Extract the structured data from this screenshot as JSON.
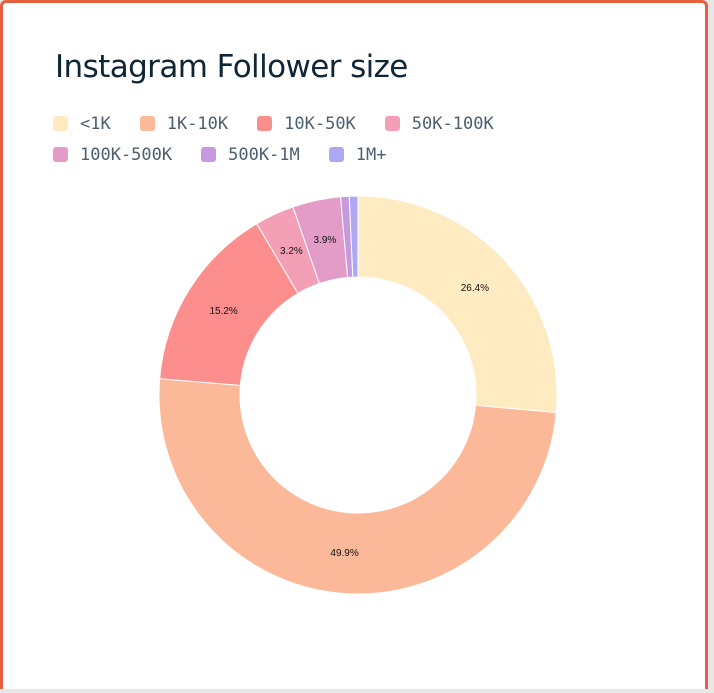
{
  "card": {
    "border_color": "#e4603f"
  },
  "chart_data": {
    "type": "pie",
    "style": "donut",
    "title": "Instagram Follower size",
    "legend_position": "top-left",
    "slices": [
      {
        "label": "<1K",
        "value": 26.4,
        "display": "26.4%",
        "color": "#ffebc2"
      },
      {
        "label": "1K-10K",
        "value": 49.9,
        "display": "49.9%",
        "color": "#fbb999"
      },
      {
        "label": "10K-50K",
        "value": 15.2,
        "display": "15.2%",
        "color": "#fc8e8e"
      },
      {
        "label": "50K-100K",
        "value": 3.2,
        "display": "3.2%",
        "color": "#f3a0b7"
      },
      {
        "label": "100K-500K",
        "value": 3.9,
        "display": "3.9%",
        "color": "#e39bc7"
      },
      {
        "label": "500K-1M",
        "value": 0.7,
        "display": "",
        "color": "#c79ae0"
      },
      {
        "label": "1M+",
        "value": 0.7,
        "display": "",
        "color": "#aea8f0"
      }
    ]
  }
}
